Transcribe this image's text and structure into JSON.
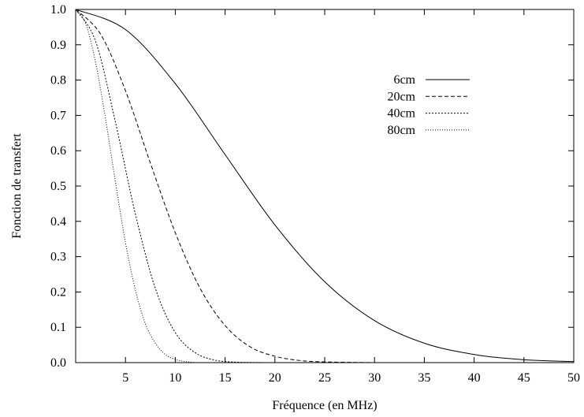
{
  "chart_data": {
    "type": "line",
    "title": "",
    "xlabel": "Fréquence (en MHz)",
    "ylabel": "Fonction de transfert",
    "xlim": [
      0,
      50
    ],
    "ylim": [
      0,
      1
    ],
    "x_ticks": [
      5,
      10,
      15,
      20,
      25,
      30,
      35,
      40,
      45,
      50
    ],
    "x_tick_labels": [
      "5",
      "10",
      "15",
      "20",
      "25",
      "30",
      "35",
      "40",
      "45",
      "50"
    ],
    "y_ticks": [
      0,
      0.1,
      0.2,
      0.3,
      0.4,
      0.5,
      0.6,
      0.7,
      0.8,
      0.9,
      1
    ],
    "y_tick_labels": [
      "0.0",
      "0.1",
      "0.2",
      "0.3",
      "0.4",
      "0.5",
      "0.6",
      "0.7",
      "0.8",
      "0.9",
      "1.0"
    ],
    "grid": false,
    "legend_position": "top-right",
    "series": [
      {
        "name": "6cm",
        "line_style": "solid",
        "color": "#000000",
        "x": [
          0,
          5,
          10,
          15,
          20,
          25,
          30,
          35,
          40,
          45,
          50
        ],
        "y": [
          1.0,
          0.943,
          0.79,
          0.589,
          0.39,
          0.229,
          0.119,
          0.055,
          0.023,
          0.008,
          0.003
        ]
      },
      {
        "name": "20cm",
        "line_style": "dashed",
        "color": "#000000",
        "x": [
          0,
          2.5,
          5,
          7.5,
          10,
          12.5,
          15,
          17.5,
          20,
          22.5,
          25,
          30
        ],
        "y": [
          1.0,
          0.93,
          0.77,
          0.565,
          0.368,
          0.21,
          0.105,
          0.045,
          0.018,
          0.006,
          0.002,
          0.0
        ]
      },
      {
        "name": "40cm",
        "line_style": "dotted-dense",
        "color": "#000000",
        "x": [
          0,
          2,
          4,
          6,
          8,
          10,
          12,
          14,
          16,
          18,
          20
        ],
        "y": [
          1.0,
          0.91,
          0.68,
          0.42,
          0.21,
          0.085,
          0.028,
          0.007,
          0.0015,
          0.0003,
          0.0
        ]
      },
      {
        "name": "80cm",
        "line_style": "dotted",
        "color": "#000000",
        "x": [
          0,
          1,
          2,
          3,
          4,
          5,
          6,
          7,
          8,
          9,
          10,
          11,
          12
        ],
        "y": [
          1.0,
          0.96,
          0.85,
          0.69,
          0.51,
          0.34,
          0.205,
          0.11,
          0.055,
          0.023,
          0.009,
          0.003,
          0.0
        ]
      }
    ]
  }
}
